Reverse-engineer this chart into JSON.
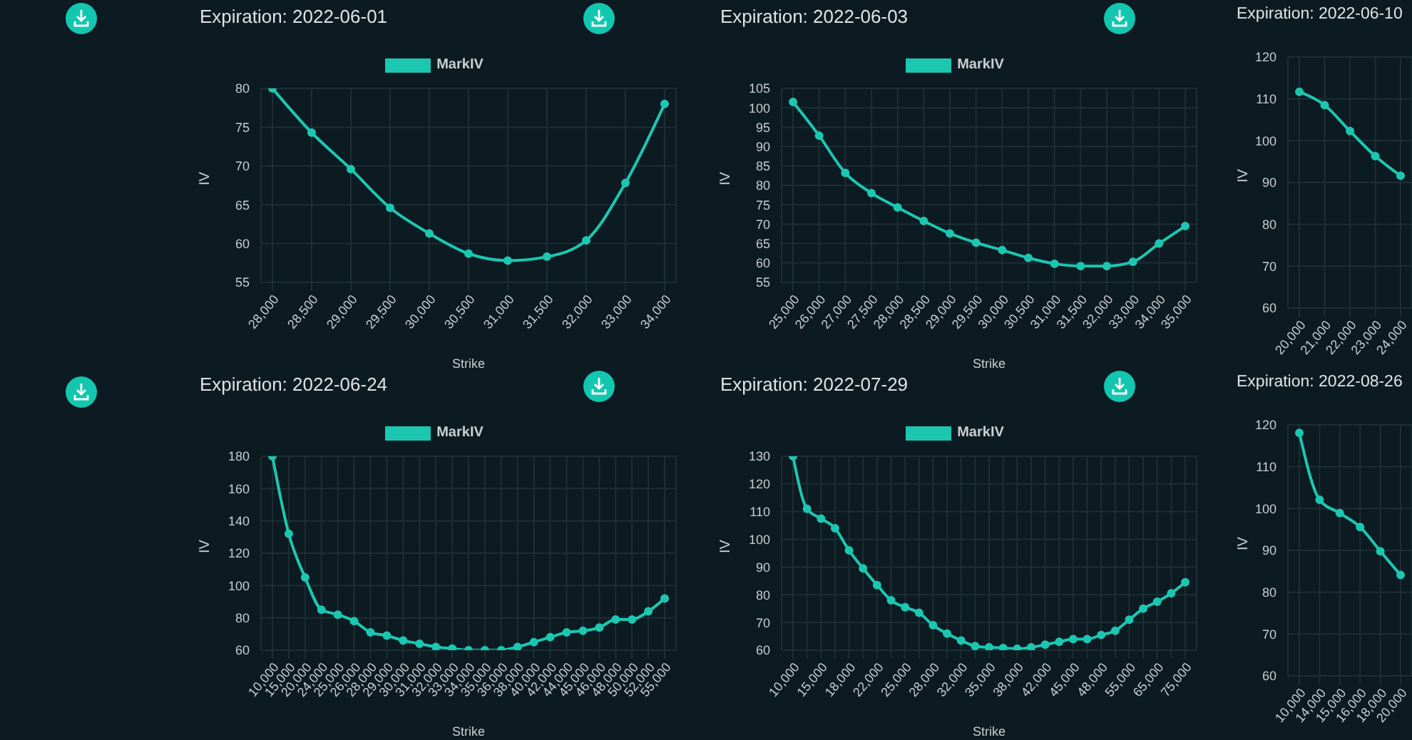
{
  "chart_data": [
    {
      "type": "line",
      "title": "Expiration: 2022-06-01",
      "xlabel": "Strike",
      "ylabel": "IV",
      "categories": [
        "28,000",
        "28,500",
        "29,000",
        "29,500",
        "30,000",
        "30,500",
        "31,000",
        "31,500",
        "32,000",
        "33,000",
        "34,000"
      ],
      "series": [
        {
          "name": "MarkIV",
          "color": "#1cc7b1",
          "values": [
            80,
            74.3,
            69.6,
            64.6,
            61.3,
            58.7,
            57.8,
            58.3,
            60.4,
            67.8,
            78
          ]
        }
      ],
      "ylim": [
        55,
        80
      ],
      "yticks": [
        55,
        60,
        65,
        70,
        75,
        80
      ],
      "grid": true,
      "legend": "top",
      "marker": "circle"
    },
    {
      "type": "line",
      "title": "Expiration: 2022-06-03",
      "xlabel": "Strike",
      "ylabel": "IV",
      "categories": [
        "25,000",
        "26,000",
        "27,000",
        "27,500",
        "28,000",
        "28,500",
        "29,000",
        "29,500",
        "30,000",
        "30,500",
        "31,000",
        "31,500",
        "32,000",
        "33,000",
        "34,000",
        "35,000"
      ],
      "series": [
        {
          "name": "MarkIV",
          "color": "#1cc7b1",
          "values": [
            101.5,
            92.8,
            83.2,
            78,
            74.3,
            70.8,
            67.6,
            65.2,
            63.3,
            61.3,
            59.8,
            59.2,
            59.2,
            60.3,
            65,
            69.5
          ]
        }
      ],
      "ylim": [
        55,
        105
      ],
      "yticks": [
        55,
        60,
        65,
        70,
        75,
        80,
        85,
        90,
        95,
        100,
        105
      ],
      "grid": true,
      "legend": "top",
      "marker": "circle"
    },
    {
      "type": "line",
      "title": "Expiration: 2022-06-10",
      "ylabel": "IV",
      "categories": [
        "20,000",
        "21,000",
        "22,000",
        "23,000",
        "24,000"
      ],
      "series": [
        {
          "color": "#1cc7b1",
          "values": [
            111.7,
            108.5,
            102.3,
            96.3,
            91.6
          ]
        }
      ],
      "ylim": [
        60,
        120
      ],
      "yticks": [
        60,
        70,
        80,
        90,
        100,
        110,
        120
      ],
      "grid": true,
      "marker": "circle"
    },
    {
      "type": "line",
      "title": "Expiration: 2022-06-24",
      "xlabel": "Strike",
      "ylabel": "IV",
      "categories": [
        "10,000",
        "15,000",
        "20,000",
        "24,000",
        "25,000",
        "26,000",
        "28,000",
        "29,000",
        "30,000",
        "31,000",
        "32,000",
        "33,000",
        "34,000",
        "35,000",
        "36,000",
        "38,000",
        "40,000",
        "42,000",
        "44,000",
        "45,000",
        "46,000",
        "48,000",
        "50,000",
        "52,000",
        "55,000"
      ],
      "series": [
        {
          "name": "MarkIV",
          "color": "#1cc7b1",
          "values": [
            180,
            132,
            105,
            85,
            82,
            78,
            71,
            69,
            66,
            64,
            62,
            61,
            60,
            60,
            60,
            62,
            65,
            68,
            71,
            72,
            74,
            79,
            79,
            84,
            92
          ]
        }
      ],
      "ylim": [
        60,
        180
      ],
      "yticks": [
        60,
        80,
        100,
        120,
        140,
        160,
        180
      ],
      "grid": true,
      "legend": "top",
      "marker": "circle"
    },
    {
      "type": "line",
      "title": "Expiration: 2022-07-29",
      "xlabel": "Strike",
      "ylabel": "IV",
      "categories": [
        "10,000",
        null,
        "15,000",
        null,
        "18,000",
        null,
        "22,000",
        null,
        "25,000",
        null,
        "28,000",
        null,
        "32,000",
        null,
        "35,000",
        null,
        "38,000",
        null,
        "42,000",
        null,
        "45,000",
        null,
        "48,000",
        null,
        "55,000",
        null,
        "65,000",
        null,
        "75,000"
      ],
      "series": [
        {
          "name": "MarkIV",
          "color": "#1cc7b1",
          "values": [
            130,
            111,
            107.5,
            104,
            96,
            89.5,
            83.5,
            78,
            75.5,
            73.5,
            69,
            66,
            63.5,
            61.5,
            61,
            60.8,
            60.5,
            61,
            62,
            63,
            64,
            64,
            65.5,
            67,
            71,
            75,
            77.5,
            80.5,
            84.5
          ]
        }
      ],
      "ylim": [
        60,
        130
      ],
      "yticks": [
        60,
        70,
        80,
        90,
        100,
        110,
        120,
        130
      ],
      "grid": true,
      "legend": "top",
      "marker": "circle"
    },
    {
      "type": "line",
      "title": "Expiration: 2022-08-26",
      "ylabel": "IV",
      "categories": [
        "10,000",
        "14,000",
        "15,000",
        "16,000",
        "18,000",
        "20,000"
      ],
      "series": [
        {
          "color": "#1cc7b1",
          "values": [
            118.1,
            102.1,
            98.9,
            95.6,
            89.8,
            84.1
          ]
        }
      ],
      "ylim": [
        60,
        120
      ],
      "yticks": [
        60,
        70,
        80,
        90,
        100,
        110,
        120
      ],
      "grid": true,
      "marker": "circle"
    }
  ]
}
